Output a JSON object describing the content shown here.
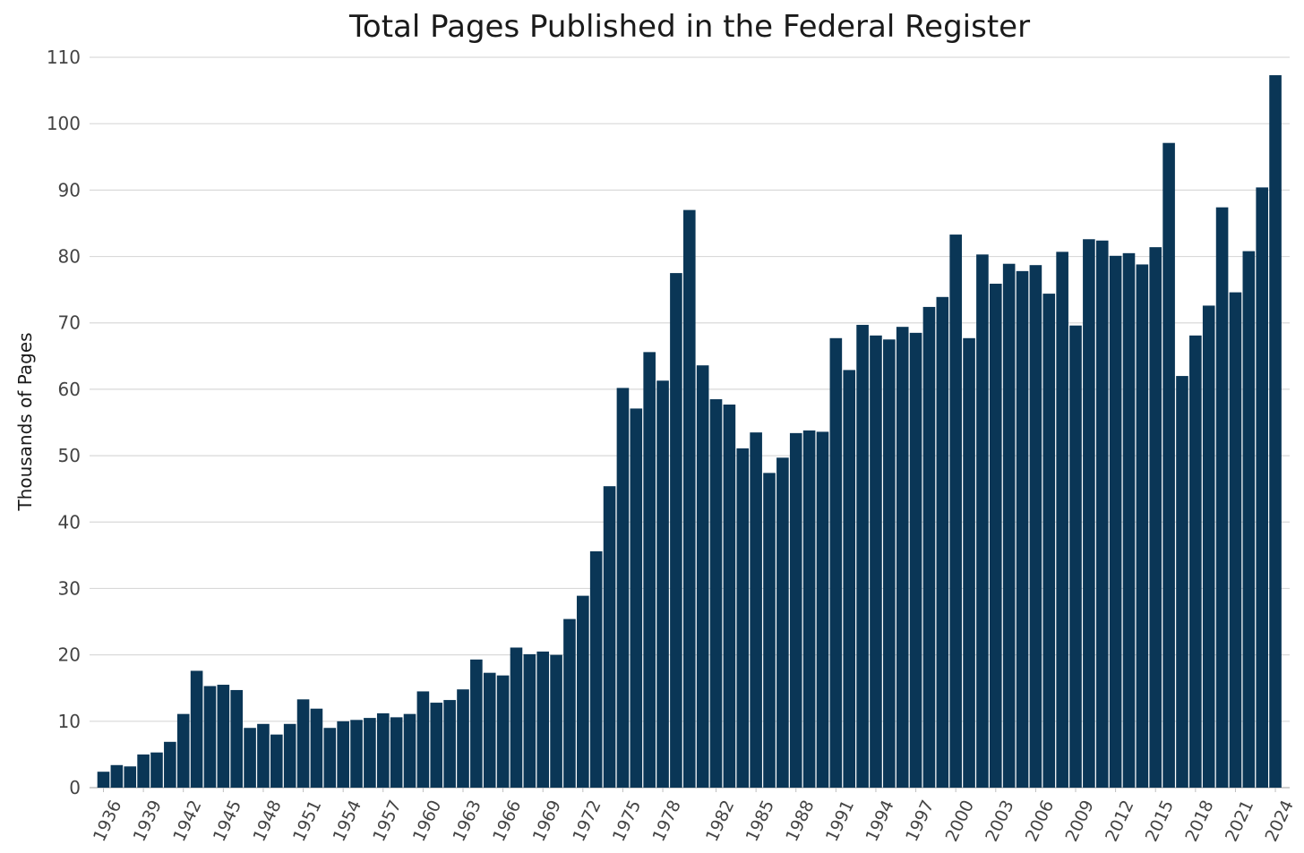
{
  "chart_data": {
    "type": "bar",
    "title": "Total Pages Published in the Federal Register",
    "xlabel": "",
    "ylabel": "Thousands of Pages",
    "ylim": [
      0,
      110
    ],
    "yticks": [
      0,
      10,
      20,
      30,
      40,
      50,
      60,
      70,
      80,
      90,
      100,
      110
    ],
    "grid": true,
    "bar_color": "#0a3656",
    "grid_color": "#d9d9d9",
    "categories": [
      "1936",
      "1937",
      "1938",
      "1939",
      "1940",
      "1941",
      "1942",
      "1943",
      "1944",
      "1945",
      "1946",
      "1947",
      "1948",
      "1949",
      "1950",
      "1951",
      "1952",
      "1953",
      "1954",
      "1955",
      "1956",
      "1957",
      "1958",
      "1959",
      "1960",
      "1961",
      "1962",
      "1963",
      "1964",
      "1965",
      "1966",
      "1967",
      "1968",
      "1969",
      "1970",
      "1971",
      "1972",
      "1973",
      "1974",
      "1975",
      "1976",
      "1977",
      "1978",
      "1979",
      "1980",
      "1981",
      "1982",
      "1983",
      "1984",
      "1985",
      "1986",
      "1987",
      "1988",
      "1989",
      "1990",
      "1991",
      "1992",
      "1993",
      "1994",
      "1995",
      "1996",
      "1997",
      "1998",
      "1999",
      "2000",
      "2001",
      "2002",
      "2003",
      "2004",
      "2005",
      "2006",
      "2007",
      "2008",
      "2009",
      "2010",
      "2011",
      "2012",
      "2013",
      "2014",
      "2015",
      "2016",
      "2017",
      "2018",
      "2019",
      "2020",
      "2021",
      "2022",
      "2023",
      "2024"
    ],
    "values": [
      2.4,
      3.4,
      3.2,
      5.0,
      5.3,
      6.9,
      11.1,
      17.6,
      15.3,
      15.5,
      14.7,
      9.0,
      9.6,
      8.0,
      9.6,
      13.3,
      11.9,
      9.0,
      10.0,
      10.2,
      10.5,
      11.2,
      10.6,
      11.1,
      14.5,
      12.8,
      13.2,
      14.8,
      19.3,
      17.3,
      16.9,
      21.1,
      20.1,
      20.5,
      20.0,
      25.4,
      28.9,
      35.6,
      45.4,
      60.2,
      57.1,
      65.6,
      61.3,
      77.5,
      87.0,
      63.6,
      58.5,
      57.7,
      51.1,
      53.5,
      47.4,
      49.7,
      53.4,
      53.8,
      53.6,
      67.7,
      62.9,
      69.7,
      68.1,
      67.5,
      69.4,
      68.5,
      72.4,
      73.9,
      83.3,
      67.7,
      80.3,
      75.9,
      78.9,
      77.8,
      78.7,
      74.4,
      80.7,
      69.6,
      82.6,
      82.4,
      80.1,
      80.5,
      78.8,
      81.4,
      97.1,
      62.0,
      68.1,
      72.6,
      87.4,
      74.6,
      80.8,
      90.4,
      107.3
    ],
    "x_tick_labels": [
      "1936",
      "1939",
      "1942",
      "1945",
      "1948",
      "1951",
      "1954",
      "1957",
      "1960",
      "1963",
      "1966",
      "1969",
      "1972",
      "1975",
      "1978",
      "1982",
      "1985",
      "1988",
      "1991",
      "1994",
      "1997",
      "2000",
      "2003",
      "2006",
      "2009",
      "2012",
      "2015",
      "2018",
      "2021",
      "2024"
    ]
  }
}
